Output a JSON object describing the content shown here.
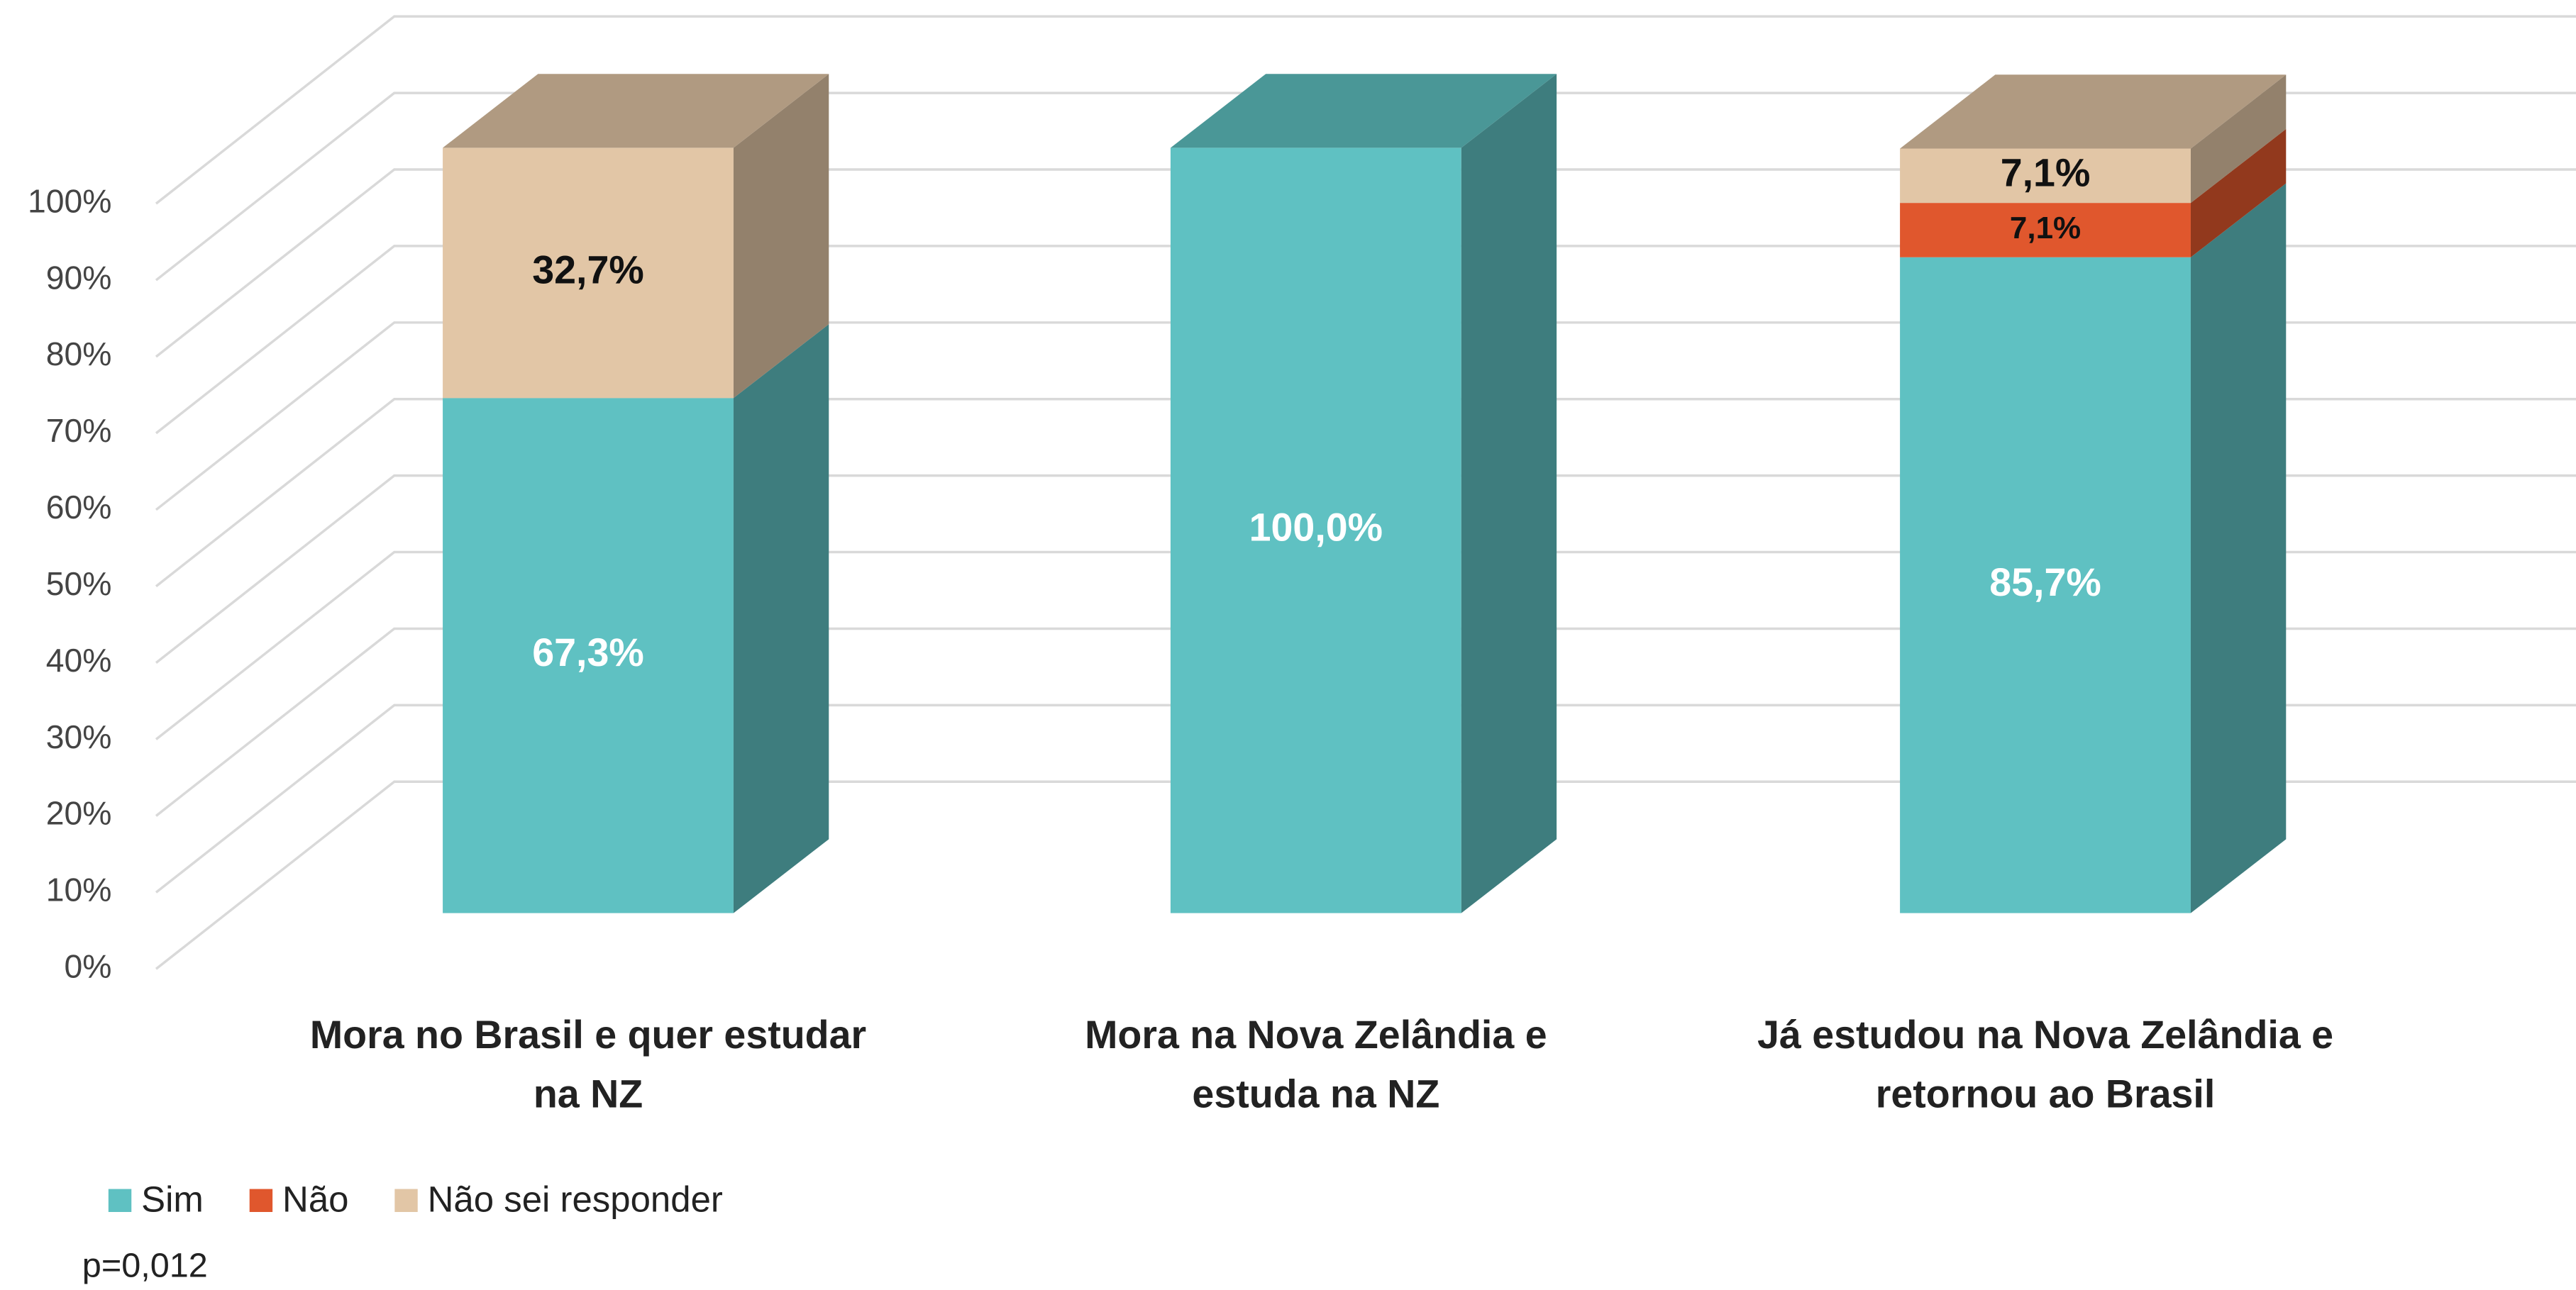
{
  "chart_data": {
    "type": "bar3d_stacked",
    "categories": [
      [
        "Mora no Brasil e quer estudar",
        "na NZ"
      ],
      [
        "Mora na Nova Zelândia e",
        "estuda na NZ"
      ],
      [
        "Já estudou na Nova Zelândia e",
        "retornou ao Brasil"
      ]
    ],
    "series": [
      {
        "name": "Sim",
        "color": "#5fc1c2",
        "values": [
          67.3,
          100,
          85.7
        ],
        "value_labels": [
          "67,3%",
          "100,0%",
          "85,7%"
        ]
      },
      {
        "name": "Não",
        "color": "#e0572d",
        "values": [
          null,
          null,
          7.1
        ],
        "value_labels": [
          null,
          null,
          "7,1%"
        ]
      },
      {
        "name": "Não sei responder",
        "color": "#e2c6a6",
        "values": [
          32.7,
          null,
          7.1
        ],
        "value_labels": [
          "32,7%",
          null,
          "7,1%"
        ]
      }
    ],
    "ylim": [
      0,
      100
    ],
    "yticks": [
      {
        "value": 0,
        "label": "0%"
      },
      {
        "value": 10,
        "label": "10%"
      },
      {
        "value": 20,
        "label": "20%"
      },
      {
        "value": 30,
        "label": "30%"
      },
      {
        "value": 40,
        "label": "40%"
      },
      {
        "value": 50,
        "label": "50%"
      },
      {
        "value": 60,
        "label": "60%"
      },
      {
        "value": 70,
        "label": "70%"
      },
      {
        "value": 80,
        "label": "80%"
      },
      {
        "value": 90,
        "label": "90%"
      },
      {
        "value": 100,
        "label": "100%"
      }
    ],
    "grid": true,
    "legend": "bottom-left",
    "annotation": "p=0,012"
  }
}
